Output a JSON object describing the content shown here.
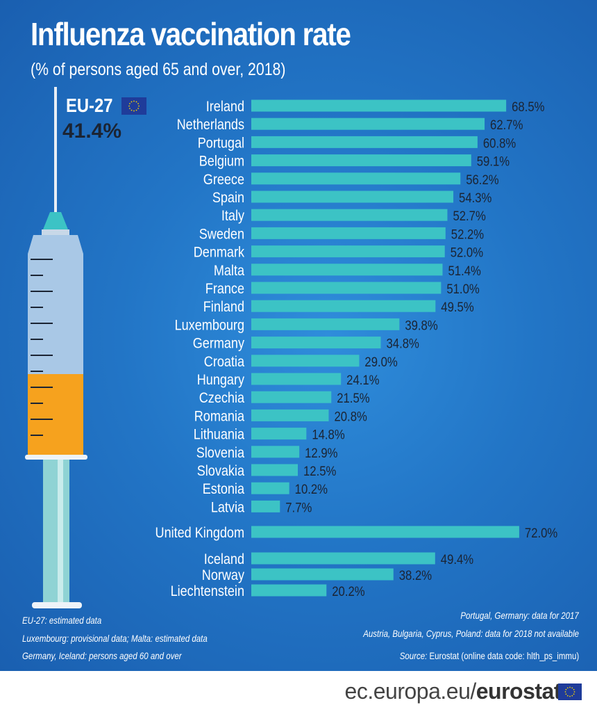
{
  "title": "Influenza vaccination rate",
  "subtitle": "(% of persons aged 65 and over, 2018)",
  "eu": {
    "label": "EU-27",
    "value": "41.4%"
  },
  "colors": {
    "bar": "#3cc3c5",
    "background": "#2275c6",
    "text": "#ffffff",
    "syringe_fill": "#f6a21e"
  },
  "chart_data": {
    "type": "bar",
    "orientation": "horizontal",
    "title": "Influenza vaccination rate",
    "subtitle": "(% of persons aged 65 and over, 2018)",
    "unit": "%",
    "groups": [
      {
        "categories": [
          "Ireland",
          "Netherlands",
          "Portugal",
          "Belgium",
          "Greece",
          "Spain",
          "Italy",
          "Sweden",
          "Denmark",
          "Malta",
          "France",
          "Finland",
          "Luxembourg",
          "Germany",
          "Croatia",
          "Hungary",
          "Czechia",
          "Romania",
          "Lithuania",
          "Slovenia",
          "Slovakia",
          "Estonia",
          "Latvia"
        ],
        "values": [
          68.5,
          62.7,
          60.8,
          59.1,
          56.2,
          54.3,
          52.7,
          52.2,
          52.0,
          51.4,
          51.0,
          49.5,
          39.8,
          34.8,
          29.0,
          24.1,
          21.5,
          20.8,
          14.8,
          12.9,
          12.5,
          10.2,
          7.7
        ]
      },
      {
        "categories": [
          "United Kingdom"
        ],
        "values": [
          72.0
        ]
      },
      {
        "categories": [
          "Iceland",
          "Norway",
          "Liechtenstein"
        ],
        "values": [
          49.4,
          38.2,
          20.2
        ]
      }
    ],
    "value_labels": true,
    "grid": false
  },
  "notes": {
    "left": [
      "EU-27: estimated data",
      "Luxembourg: provisional data; Malta: estimated data",
      "Germany, Iceland: persons aged 60 and over"
    ],
    "right": [
      "Portugal, Germany: data for 2017",
      "Austria, Bulgaria, Cyprus, Poland: data for 2018 not available"
    ],
    "source_label": "Source:",
    "source_text": " Eurostat (online data code: hlth_ps_immu)"
  },
  "footer": {
    "url_prefix": "ec.europa.eu/",
    "url_brand": "eurostat"
  }
}
